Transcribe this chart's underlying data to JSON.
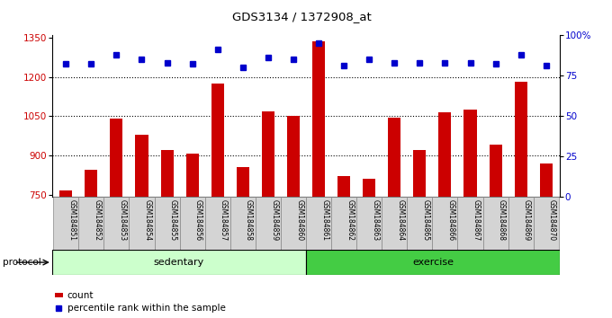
{
  "title": "GDS3134 / 1372908_at",
  "samples": [
    "GSM184851",
    "GSM184852",
    "GSM184853",
    "GSM184854",
    "GSM184855",
    "GSM184856",
    "GSM184857",
    "GSM184858",
    "GSM184859",
    "GSM184860",
    "GSM184861",
    "GSM184862",
    "GSM184863",
    "GSM184864",
    "GSM184865",
    "GSM184866",
    "GSM184867",
    "GSM184868",
    "GSM184869",
    "GSM184870"
  ],
  "bar_values": [
    765,
    843,
    1042,
    980,
    920,
    905,
    1175,
    855,
    1068,
    1050,
    1335,
    820,
    810,
    1045,
    920,
    1063,
    1075,
    940,
    1180,
    870
  ],
  "dot_values": [
    82,
    82,
    88,
    85,
    83,
    82,
    91,
    80,
    86,
    85,
    95,
    81,
    85,
    83,
    83,
    83,
    83,
    82,
    88,
    81
  ],
  "bar_color": "#cc0000",
  "dot_color": "#0000cc",
  "ylim_left": [
    740,
    1360
  ],
  "ylim_right": [
    0,
    100
  ],
  "yticks_left": [
    750,
    900,
    1050,
    1200,
    1350
  ],
  "yticks_right": [
    0,
    25,
    50,
    75,
    100
  ],
  "yticklabels_right": [
    "0",
    "25",
    "50",
    "75",
    "100%"
  ],
  "grid_values": [
    900,
    1050,
    1200
  ],
  "sedentary_count": 10,
  "sedentary_color": "#ccffcc",
  "exercise_color": "#44cc44",
  "protocol_text": "protocol",
  "legend_count_label": "count",
  "legend_pct_label": "percentile rank within the sample"
}
